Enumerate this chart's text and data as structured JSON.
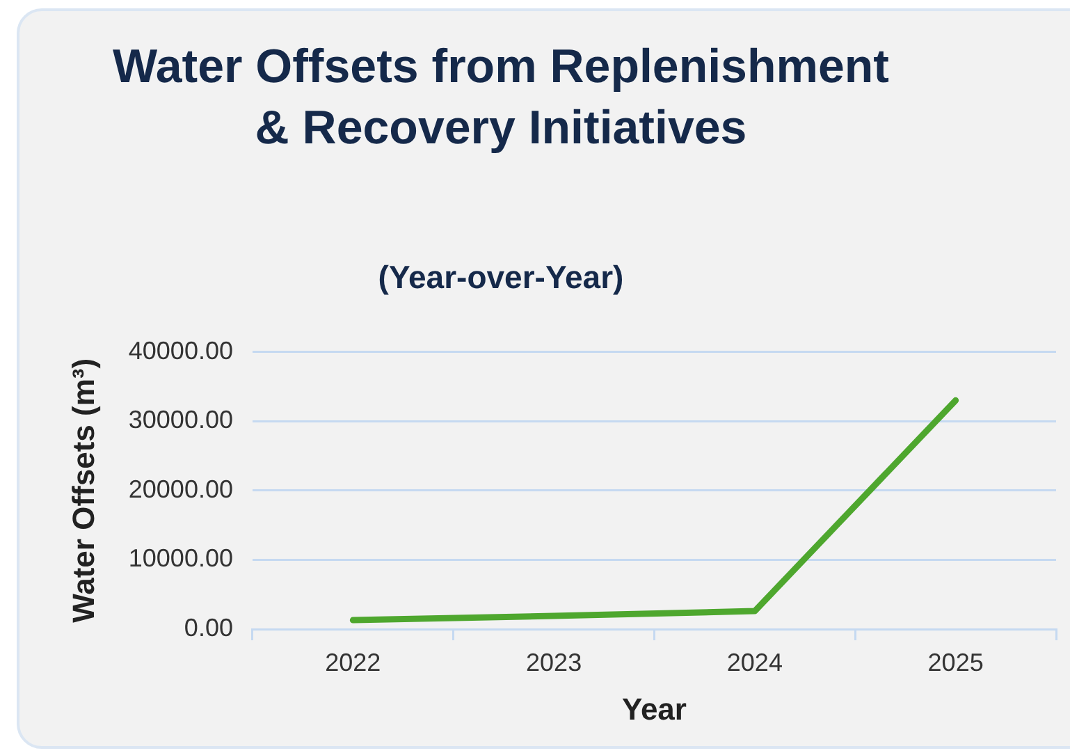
{
  "chart_data": {
    "type": "line",
    "title": "Water Offsets from Replenishment & Recovery Initiatives",
    "subtitle": "(Year-over-Year)",
    "xlabel": "Year",
    "ylabel": "Water Offsets (m³)",
    "categories": [
      "2022",
      "2023",
      "2024",
      "2025"
    ],
    "series": [
      {
        "color": "#4ea72e",
        "values": [
          1300,
          1900,
          2600,
          33000
        ]
      }
    ],
    "ylim": [
      0,
      40000
    ],
    "yticks": [
      {
        "value": 0,
        "label": "0.00"
      },
      {
        "value": 10000,
        "label": "10000.00"
      },
      {
        "value": 20000,
        "label": "20000.00"
      },
      {
        "value": 30000,
        "label": "30000.00"
      },
      {
        "value": 40000,
        "label": "40000.00"
      }
    ],
    "grid": "y",
    "legend": false,
    "marker": "none",
    "line_style": "solid"
  }
}
